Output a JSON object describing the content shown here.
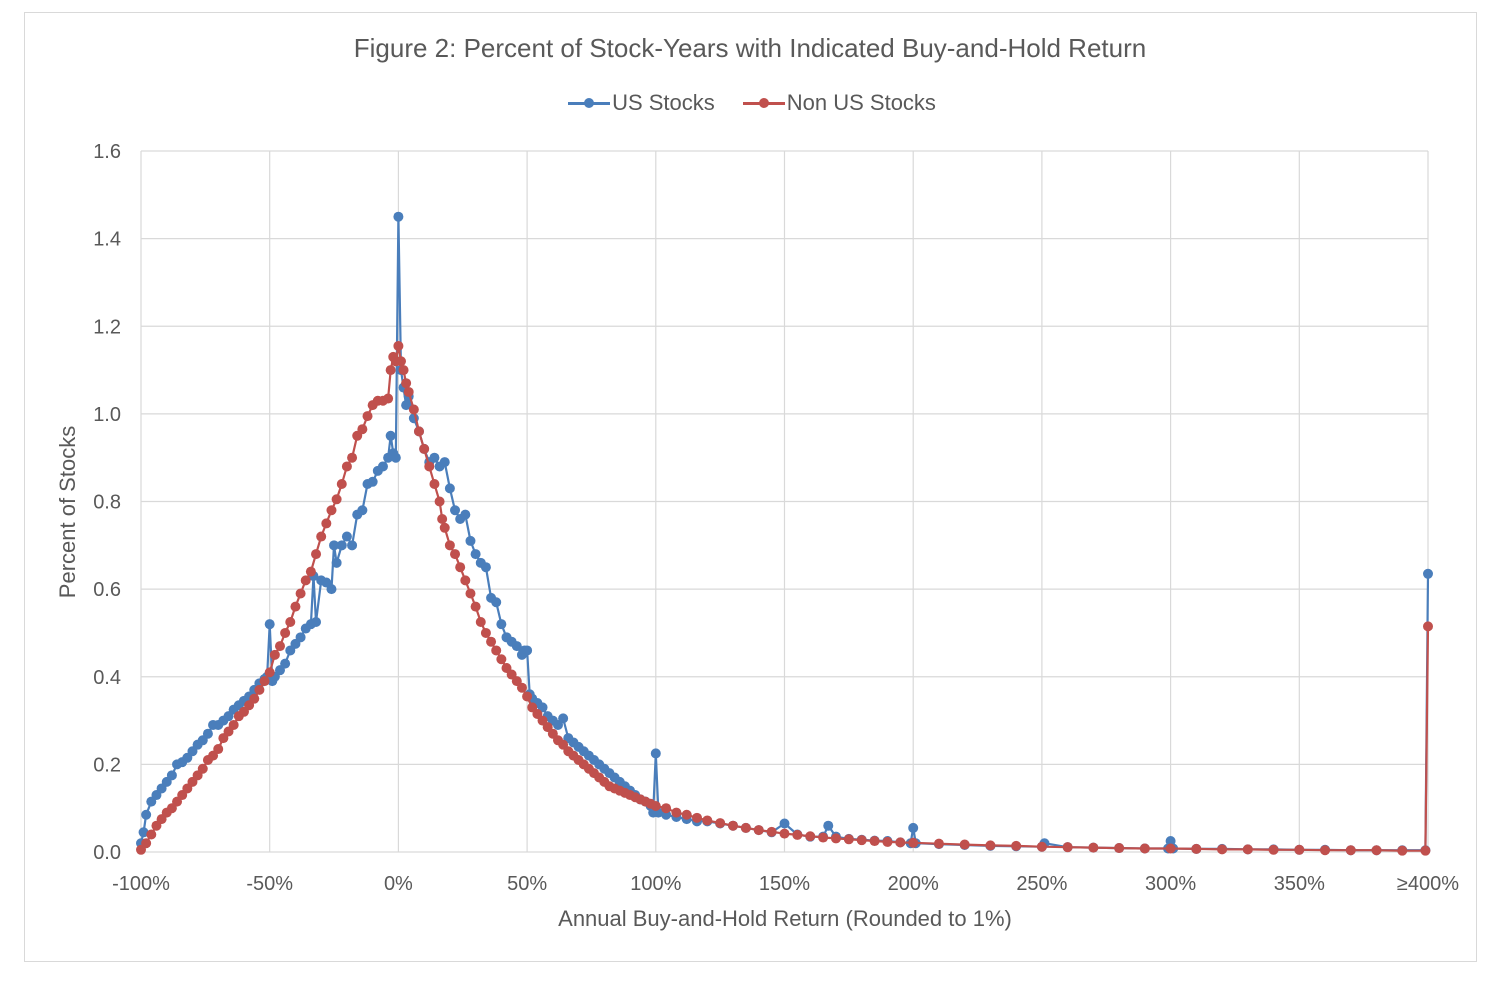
{
  "chart_data": {
    "type": "line",
    "title": "Figure 2: Percent of Stock-Years with Indicated Buy-and-Hold Return",
    "xlabel": "Annual Buy-and-Hold Return (Rounded to 1%)",
    "ylabel": "Percent of Stocks",
    "xlim": [
      -100,
      400
    ],
    "ylim": [
      0,
      1.6
    ],
    "grid": true,
    "legend_position": "top-center",
    "x_tick_labels": [
      "-100%",
      "-50%",
      "0%",
      "50%",
      "100%",
      "150%",
      "200%",
      "250%",
      "300%",
      "350%",
      "≥400%"
    ],
    "y_tick_labels": [
      "0.0",
      "0.2",
      "0.4",
      "0.6",
      "0.8",
      "1.0",
      "1.2",
      "1.4",
      "1.6"
    ],
    "series": [
      {
        "name": "US Stocks",
        "color": "#4a7ebb",
        "points": [
          [
            -100,
            0.02
          ],
          [
            -99,
            0.045
          ],
          [
            -98,
            0.085
          ],
          [
            -96,
            0.115
          ],
          [
            -94,
            0.13
          ],
          [
            -92,
            0.145
          ],
          [
            -90,
            0.16
          ],
          [
            -88,
            0.175
          ],
          [
            -86,
            0.2
          ],
          [
            -84,
            0.205
          ],
          [
            -82,
            0.215
          ],
          [
            -80,
            0.23
          ],
          [
            -78,
            0.245
          ],
          [
            -76,
            0.255
          ],
          [
            -74,
            0.27
          ],
          [
            -72,
            0.29
          ],
          [
            -70,
            0.29
          ],
          [
            -68,
            0.3
          ],
          [
            -66,
            0.31
          ],
          [
            -64,
            0.325
          ],
          [
            -62,
            0.335
          ],
          [
            -60,
            0.345
          ],
          [
            -58,
            0.355
          ],
          [
            -56,
            0.37
          ],
          [
            -54,
            0.385
          ],
          [
            -52,
            0.395
          ],
          [
            -51,
            0.4
          ],
          [
            -50,
            0.52
          ],
          [
            -49,
            0.39
          ],
          [
            -48,
            0.4
          ],
          [
            -46,
            0.415
          ],
          [
            -44,
            0.43
          ],
          [
            -42,
            0.46
          ],
          [
            -40,
            0.475
          ],
          [
            -38,
            0.49
          ],
          [
            -36,
            0.51
          ],
          [
            -34,
            0.52
          ],
          [
            -33,
            0.63
          ],
          [
            -32,
            0.525
          ],
          [
            -30,
            0.62
          ],
          [
            -28,
            0.615
          ],
          [
            -26,
            0.6
          ],
          [
            -25,
            0.7
          ],
          [
            -24,
            0.66
          ],
          [
            -22,
            0.7
          ],
          [
            -20,
            0.72
          ],
          [
            -18,
            0.7
          ],
          [
            -16,
            0.77
          ],
          [
            -14,
            0.78
          ],
          [
            -12,
            0.84
          ],
          [
            -10,
            0.845
          ],
          [
            -8,
            0.87
          ],
          [
            -6,
            0.88
          ],
          [
            -4,
            0.9
          ],
          [
            -3,
            0.95
          ],
          [
            -2,
            0.91
          ],
          [
            -1,
            0.9
          ],
          [
            0,
            1.45
          ],
          [
            1,
            1.1
          ],
          [
            2,
            1.06
          ],
          [
            3,
            1.02
          ],
          [
            4,
            1.04
          ],
          [
            6,
            0.99
          ],
          [
            8,
            0.96
          ],
          [
            10,
            0.92
          ],
          [
            12,
            0.89
          ],
          [
            14,
            0.9
          ],
          [
            16,
            0.88
          ],
          [
            18,
            0.89
          ],
          [
            20,
            0.83
          ],
          [
            22,
            0.78
          ],
          [
            24,
            0.76
          ],
          [
            26,
            0.77
          ],
          [
            28,
            0.71
          ],
          [
            30,
            0.68
          ],
          [
            32,
            0.66
          ],
          [
            34,
            0.65
          ],
          [
            36,
            0.58
          ],
          [
            38,
            0.57
          ],
          [
            40,
            0.52
          ],
          [
            42,
            0.49
          ],
          [
            44,
            0.48
          ],
          [
            46,
            0.47
          ],
          [
            48,
            0.45
          ],
          [
            49,
            0.46
          ],
          [
            50,
            0.46
          ],
          [
            51,
            0.36
          ],
          [
            52,
            0.35
          ],
          [
            54,
            0.34
          ],
          [
            56,
            0.33
          ],
          [
            58,
            0.31
          ],
          [
            60,
            0.3
          ],
          [
            62,
            0.29
          ],
          [
            64,
            0.305
          ],
          [
            66,
            0.26
          ],
          [
            68,
            0.25
          ],
          [
            70,
            0.24
          ],
          [
            72,
            0.23
          ],
          [
            74,
            0.22
          ],
          [
            76,
            0.21
          ],
          [
            78,
            0.2
          ],
          [
            80,
            0.19
          ],
          [
            82,
            0.18
          ],
          [
            84,
            0.17
          ],
          [
            86,
            0.16
          ],
          [
            88,
            0.15
          ],
          [
            90,
            0.14
          ],
          [
            92,
            0.13
          ],
          [
            94,
            0.12
          ],
          [
            96,
            0.115
          ],
          [
            98,
            0.105
          ],
          [
            99,
            0.09
          ],
          [
            100,
            0.225
          ],
          [
            101,
            0.09
          ],
          [
            104,
            0.085
          ],
          [
            108,
            0.08
          ],
          [
            112,
            0.075
          ],
          [
            116,
            0.07
          ],
          [
            120,
            0.07
          ],
          [
            125,
            0.065
          ],
          [
            130,
            0.06
          ],
          [
            135,
            0.055
          ],
          [
            140,
            0.05
          ],
          [
            145,
            0.045
          ],
          [
            150,
            0.065
          ],
          [
            155,
            0.04
          ],
          [
            160,
            0.035
          ],
          [
            165,
            0.035
          ],
          [
            167,
            0.06
          ],
          [
            170,
            0.035
          ],
          [
            175,
            0.03
          ],
          [
            180,
            0.028
          ],
          [
            185,
            0.026
          ],
          [
            190,
            0.025
          ],
          [
            195,
            0.022
          ],
          [
            199,
            0.02
          ],
          [
            200,
            0.055
          ],
          [
            201,
            0.02
          ],
          [
            210,
            0.018
          ],
          [
            220,
            0.016
          ],
          [
            230,
            0.014
          ],
          [
            240,
            0.013
          ],
          [
            250,
            0.012
          ],
          [
            251,
            0.02
          ],
          [
            260,
            0.011
          ],
          [
            270,
            0.01
          ],
          [
            280,
            0.009
          ],
          [
            290,
            0.008
          ],
          [
            299,
            0.008
          ],
          [
            300,
            0.025
          ],
          [
            301,
            0.008
          ],
          [
            310,
            0.007
          ],
          [
            320,
            0.007
          ],
          [
            330,
            0.006
          ],
          [
            340,
            0.006
          ],
          [
            350,
            0.005
          ],
          [
            360,
            0.005
          ],
          [
            370,
            0.004
          ],
          [
            380,
            0.004
          ],
          [
            390,
            0.004
          ],
          [
            399,
            0.004
          ],
          [
            400,
            0.635
          ]
        ]
      },
      {
        "name": "Non US Stocks",
        "color": "#c0504d",
        "points": [
          [
            -100,
            0.005
          ],
          [
            -98,
            0.02
          ],
          [
            -96,
            0.04
          ],
          [
            -94,
            0.06
          ],
          [
            -92,
            0.075
          ],
          [
            -90,
            0.09
          ],
          [
            -88,
            0.1
          ],
          [
            -86,
            0.115
          ],
          [
            -84,
            0.13
          ],
          [
            -82,
            0.145
          ],
          [
            -80,
            0.16
          ],
          [
            -78,
            0.175
          ],
          [
            -76,
            0.19
          ],
          [
            -74,
            0.21
          ],
          [
            -72,
            0.22
          ],
          [
            -70,
            0.235
          ],
          [
            -68,
            0.26
          ],
          [
            -66,
            0.275
          ],
          [
            -64,
            0.29
          ],
          [
            -62,
            0.31
          ],
          [
            -60,
            0.32
          ],
          [
            -58,
            0.335
          ],
          [
            -56,
            0.35
          ],
          [
            -54,
            0.37
          ],
          [
            -52,
            0.39
          ],
          [
            -50,
            0.41
          ],
          [
            -48,
            0.45
          ],
          [
            -46,
            0.47
          ],
          [
            -44,
            0.5
          ],
          [
            -42,
            0.525
          ],
          [
            -40,
            0.56
          ],
          [
            -38,
            0.59
          ],
          [
            -36,
            0.62
          ],
          [
            -34,
            0.64
          ],
          [
            -32,
            0.68
          ],
          [
            -30,
            0.72
          ],
          [
            -28,
            0.75
          ],
          [
            -26,
            0.78
          ],
          [
            -24,
            0.805
          ],
          [
            -22,
            0.84
          ],
          [
            -20,
            0.88
          ],
          [
            -18,
            0.9
          ],
          [
            -16,
            0.95
          ],
          [
            -14,
            0.965
          ],
          [
            -12,
            0.995
          ],
          [
            -10,
            1.02
          ],
          [
            -8,
            1.03
          ],
          [
            -6,
            1.03
          ],
          [
            -4,
            1.035
          ],
          [
            -3,
            1.1
          ],
          [
            -2,
            1.13
          ],
          [
            -1,
            1.12
          ],
          [
            0,
            1.155
          ],
          [
            1,
            1.12
          ],
          [
            2,
            1.1
          ],
          [
            3,
            1.07
          ],
          [
            4,
            1.05
          ],
          [
            6,
            1.01
          ],
          [
            8,
            0.96
          ],
          [
            10,
            0.92
          ],
          [
            12,
            0.88
          ],
          [
            14,
            0.84
          ],
          [
            16,
            0.8
          ],
          [
            17,
            0.76
          ],
          [
            18,
            0.74
          ],
          [
            20,
            0.7
          ],
          [
            22,
            0.68
          ],
          [
            24,
            0.65
          ],
          [
            26,
            0.62
          ],
          [
            28,
            0.59
          ],
          [
            30,
            0.56
          ],
          [
            32,
            0.525
          ],
          [
            34,
            0.5
          ],
          [
            36,
            0.48
          ],
          [
            38,
            0.46
          ],
          [
            40,
            0.44
          ],
          [
            42,
            0.42
          ],
          [
            44,
            0.405
          ],
          [
            46,
            0.39
          ],
          [
            48,
            0.375
          ],
          [
            50,
            0.355
          ],
          [
            52,
            0.33
          ],
          [
            54,
            0.315
          ],
          [
            56,
            0.3
          ],
          [
            58,
            0.285
          ],
          [
            60,
            0.27
          ],
          [
            62,
            0.255
          ],
          [
            64,
            0.245
          ],
          [
            66,
            0.23
          ],
          [
            68,
            0.22
          ],
          [
            70,
            0.21
          ],
          [
            72,
            0.2
          ],
          [
            74,
            0.19
          ],
          [
            76,
            0.18
          ],
          [
            78,
            0.17
          ],
          [
            80,
            0.16
          ],
          [
            82,
            0.15
          ],
          [
            84,
            0.145
          ],
          [
            86,
            0.14
          ],
          [
            88,
            0.135
          ],
          [
            90,
            0.13
          ],
          [
            92,
            0.125
          ],
          [
            94,
            0.12
          ],
          [
            96,
            0.115
          ],
          [
            98,
            0.11
          ],
          [
            100,
            0.105
          ],
          [
            104,
            0.1
          ],
          [
            108,
            0.09
          ],
          [
            112,
            0.085
          ],
          [
            116,
            0.078
          ],
          [
            120,
            0.072
          ],
          [
            125,
            0.066
          ],
          [
            130,
            0.06
          ],
          [
            135,
            0.055
          ],
          [
            140,
            0.05
          ],
          [
            145,
            0.046
          ],
          [
            150,
            0.042
          ],
          [
            155,
            0.039
          ],
          [
            160,
            0.036
          ],
          [
            165,
            0.033
          ],
          [
            170,
            0.031
          ],
          [
            175,
            0.029
          ],
          [
            180,
            0.027
          ],
          [
            185,
            0.025
          ],
          [
            190,
            0.023
          ],
          [
            195,
            0.022
          ],
          [
            200,
            0.021
          ],
          [
            210,
            0.019
          ],
          [
            220,
            0.017
          ],
          [
            230,
            0.015
          ],
          [
            240,
            0.014
          ],
          [
            250,
            0.012
          ],
          [
            260,
            0.011
          ],
          [
            270,
            0.01
          ],
          [
            280,
            0.009
          ],
          [
            290,
            0.008
          ],
          [
            300,
            0.008
          ],
          [
            310,
            0.007
          ],
          [
            320,
            0.006
          ],
          [
            330,
            0.006
          ],
          [
            340,
            0.005
          ],
          [
            350,
            0.005
          ],
          [
            360,
            0.004
          ],
          [
            370,
            0.004
          ],
          [
            380,
            0.004
          ],
          [
            390,
            0.003
          ],
          [
            399,
            0.003
          ],
          [
            400,
            0.515
          ]
        ]
      }
    ]
  }
}
